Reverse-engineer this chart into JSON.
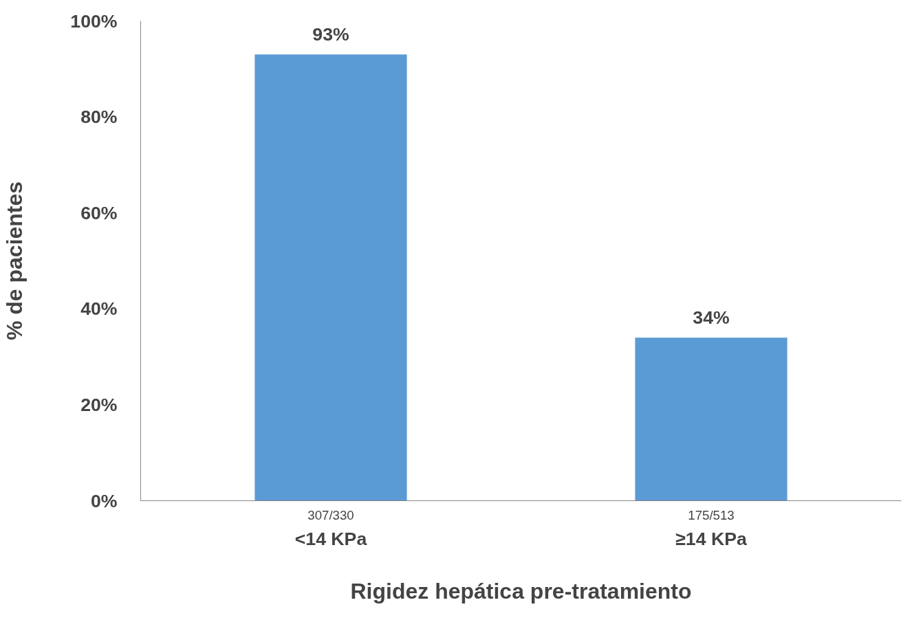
{
  "chart_data": {
    "type": "bar",
    "categories": [
      "<14 KPa",
      "≥14 KPa"
    ],
    "values": [
      93,
      34
    ],
    "color": "#5b9bd5",
    "value_labels": [
      "93%",
      "34%"
    ],
    "xlabel": "Rigidez hepática pre-tratamiento",
    "ylabel": "% de pacientes",
    "ylim": [
      0,
      100
    ],
    "yticks": [
      {
        "value": 0,
        "label": "0%"
      },
      {
        "value": 20,
        "label": "20%"
      },
      {
        "value": 40,
        "label": "40%"
      },
      {
        "value": 60,
        "label": "60%"
      },
      {
        "value": 80,
        "label": "80%"
      },
      {
        "value": 100,
        "label": "100%"
      }
    ],
    "annotations": [
      "307/330",
      "175/513"
    ],
    "grid": false
  }
}
